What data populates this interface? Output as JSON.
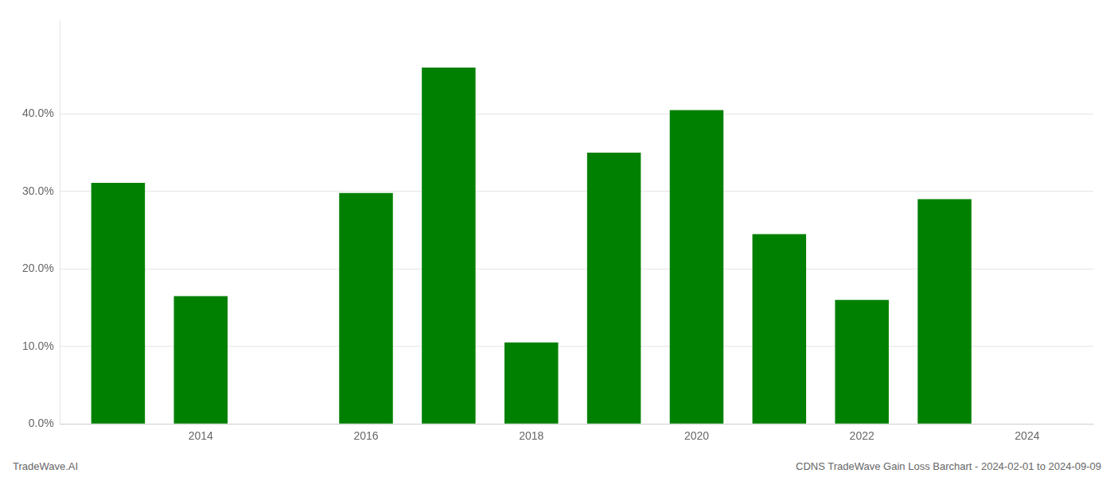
{
  "chart_data": {
    "type": "bar",
    "x": [
      2013,
      2014,
      2016,
      2017,
      2018,
      2019,
      2020,
      2021,
      2022,
      2023
    ],
    "values": [
      0.311,
      0.165,
      0.298,
      0.46,
      0.105,
      0.35,
      0.405,
      0.245,
      0.16,
      0.29
    ],
    "color": "#008000",
    "xlim": [
      2012.3,
      2024.8
    ],
    "xticks": [
      2014,
      2016,
      2018,
      2020,
      2022,
      2024
    ],
    "ylim": [
      0,
      0.52
    ],
    "yticks": [
      {
        "value": 0.0,
        "label": "0.0%"
      },
      {
        "value": 0.1,
        "label": "10.0%"
      },
      {
        "value": 0.2,
        "label": "20.0%"
      },
      {
        "value": 0.3,
        "label": "30.0%"
      },
      {
        "value": 0.4,
        "label": "40.0%"
      }
    ],
    "grid": true,
    "annotations": [
      "TradeWave.AI",
      "CDNS TradeWave Gain Loss Barchart - 2024-02-01 to 2024-09-09"
    ]
  }
}
